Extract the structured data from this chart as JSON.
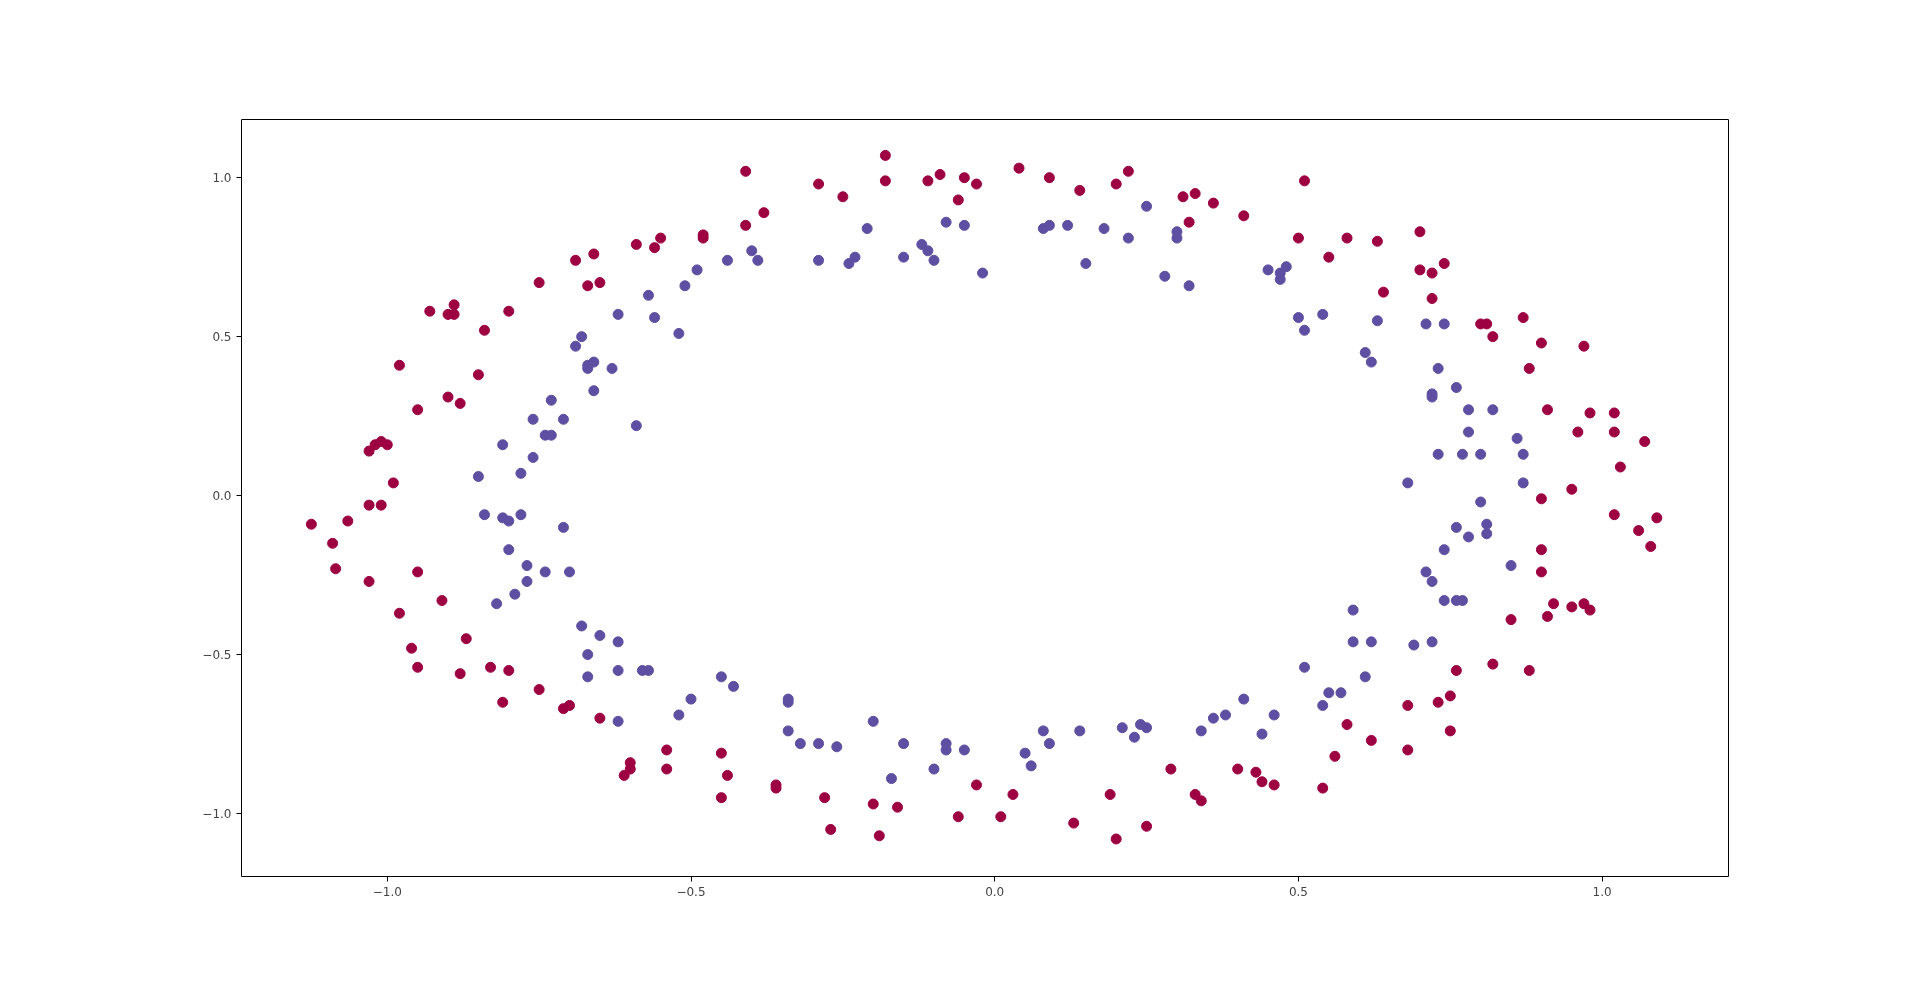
{
  "chart_data": {
    "type": "scatter",
    "marker": "circle",
    "grid": false,
    "xlim": [
      -1.24,
      1.208
    ],
    "ylim": [
      -1.198,
      1.183
    ],
    "xticks": [
      {
        "value": -1.0,
        "label": "−1.0"
      },
      {
        "value": -0.5,
        "label": "−0.5"
      },
      {
        "value": 0.0,
        "label": "0.0"
      },
      {
        "value": 0.5,
        "label": "0.5"
      },
      {
        "value": 1.0,
        "label": "1.0"
      }
    ],
    "yticks": [
      {
        "value": -1.0,
        "label": "−1.0"
      },
      {
        "value": -0.5,
        "label": "−0.5"
      },
      {
        "value": 0.0,
        "label": "0.0"
      },
      {
        "value": 0.5,
        "label": "0.5"
      },
      {
        "value": 1.0,
        "label": "1.0"
      }
    ],
    "series": [
      {
        "color": "#9e0142",
        "x": [
          -1.125,
          -1.09,
          -1.085,
          -1.065,
          -1.03,
          -1.03,
          -1.01,
          -1.03,
          -1.02,
          -1.01,
          -1.0,
          -0.99,
          -0.98,
          -0.98,
          -0.95,
          -0.95,
          -0.96,
          -0.95,
          -0.93,
          -0.91,
          -0.9,
          -0.9,
          -0.89,
          -0.89,
          -0.88,
          -0.88,
          -0.87,
          -0.85,
          -0.84,
          -0.83,
          -0.81,
          -0.8,
          -0.8,
          -0.75,
          -0.75,
          -0.71,
          -0.7,
          -0.69,
          -0.67,
          -0.66,
          -0.65,
          -0.65,
          -0.61,
          -0.6,
          -0.6,
          -0.59,
          -0.56,
          -0.55,
          -0.54,
          -0.54,
          -0.48,
          -0.48,
          -0.45,
          -0.44,
          -0.45,
          -0.41,
          -0.41,
          -0.38,
          -0.36,
          -0.36,
          -0.29,
          -0.28,
          -0.27,
          -0.25,
          -0.2,
          -0.19,
          -0.18,
          -0.18,
          -0.16,
          -0.11,
          -0.09,
          -0.06,
          -0.06,
          -0.05,
          -0.03,
          -0.03,
          0.01,
          0.03,
          0.04,
          0.09,
          0.13,
          0.14,
          0.19,
          0.2,
          0.2,
          0.22,
          0.25,
          0.29,
          0.31,
          0.33,
          0.32,
          0.33,
          0.34,
          0.36,
          0.4,
          0.41,
          0.43,
          0.44,
          0.46,
          0.5,
          0.51,
          0.54,
          0.55,
          0.56,
          0.58,
          0.58,
          0.62,
          0.63,
          0.64,
          0.68,
          0.68,
          0.7,
          0.7,
          0.72,
          0.72,
          0.73,
          0.74,
          0.75,
          0.75,
          0.76,
          0.8,
          0.81,
          0.82,
          0.82,
          0.85,
          0.87,
          0.88,
          0.88,
          0.9,
          0.9,
          0.9,
          0.9,
          0.91,
          0.91,
          0.92,
          0.95,
          0.95,
          0.96,
          0.97,
          0.97,
          0.98,
          0.98,
          1.02,
          1.02,
          1.02,
          1.03,
          1.06,
          1.07,
          1.08,
          1.09
        ],
        "values": [
          -0.09,
          -0.15,
          -0.23,
          -0.08,
          -0.27,
          -0.03,
          -0.03,
          0.14,
          0.16,
          0.17,
          0.16,
          0.04,
          0.41,
          -0.37,
          0.27,
          -0.24,
          -0.48,
          -0.54,
          0.58,
          -0.33,
          0.57,
          0.31,
          0.6,
          0.57,
          0.29,
          -0.56,
          -0.45,
          0.38,
          0.52,
          -0.54,
          -0.65,
          0.58,
          -0.55,
          0.67,
          -0.61,
          -0.67,
          -0.66,
          0.74,
          0.66,
          0.76,
          0.67,
          -0.7,
          -0.88,
          -0.86,
          -0.84,
          0.79,
          0.78,
          0.81,
          -0.8,
          -0.86,
          0.82,
          0.81,
          -0.81,
          -0.88,
          -0.95,
          1.02,
          0.85,
          0.89,
          -0.91,
          -0.92,
          0.98,
          -0.95,
          -1.05,
          0.94,
          -0.97,
          -1.07,
          1.07,
          0.99,
          -0.98,
          0.99,
          1.01,
          0.93,
          -1.01,
          1.0,
          0.98,
          -0.91,
          -1.01,
          -0.94,
          1.03,
          1.0,
          -1.03,
          0.96,
          -0.94,
          -1.08,
          0.98,
          1.02,
          -1.04,
          -0.86,
          0.94,
          0.95,
          0.86,
          -0.94,
          -0.96,
          0.92,
          -0.86,
          0.88,
          -0.87,
          -0.9,
          -0.91,
          0.81,
          0.99,
          -0.92,
          0.75,
          -0.82,
          0.81,
          -0.72,
          -0.77,
          0.8,
          0.64,
          -0.66,
          -0.8,
          0.83,
          0.71,
          0.62,
          0.7,
          -0.65,
          0.73,
          -0.63,
          -0.74,
          -0.55,
          0.54,
          0.54,
          0.5,
          -0.53,
          -0.39,
          0.56,
          0.4,
          -0.55,
          0.48,
          -0.01,
          -0.17,
          -0.24,
          -0.38,
          0.27,
          -0.34,
          0.02,
          -0.35,
          0.2,
          -0.34,
          0.47,
          -0.36,
          0.26,
          0.2,
          0.26,
          -0.06,
          0.09,
          -0.11,
          0.17,
          -0.16,
          -0.07
        ]
      },
      {
        "color": "#5e4fa2",
        "x": [
          -0.85,
          -0.84,
          -0.82,
          -0.81,
          -0.81,
          -0.8,
          -0.8,
          -0.79,
          -0.78,
          -0.78,
          -0.77,
          -0.77,
          -0.76,
          -0.76,
          -0.74,
          -0.73,
          -0.74,
          -0.73,
          -0.71,
          -0.71,
          -0.7,
          -0.69,
          -0.68,
          -0.68,
          -0.67,
          -0.67,
          -0.67,
          -0.67,
          -0.66,
          -0.66,
          -0.65,
          -0.63,
          -0.62,
          -0.62,
          -0.62,
          -0.62,
          -0.59,
          -0.58,
          -0.57,
          -0.57,
          -0.56,
          -0.52,
          -0.52,
          -0.51,
          -0.49,
          -0.5,
          -0.45,
          -0.44,
          -0.43,
          -0.4,
          -0.39,
          -0.34,
          -0.34,
          -0.34,
          -0.32,
          -0.29,
          -0.29,
          -0.26,
          -0.24,
          -0.23,
          -0.21,
          -0.2,
          -0.17,
          -0.15,
          -0.15,
          -0.12,
          -0.11,
          -0.1,
          -0.1,
          -0.08,
          -0.08,
          -0.08,
          -0.05,
          -0.05,
          -0.02,
          0.05,
          0.06,
          0.08,
          0.08,
          0.09,
          0.09,
          0.12,
          0.14,
          0.15,
          0.18,
          0.21,
          0.22,
          0.23,
          0.24,
          0.25,
          0.25,
          0.28,
          0.3,
          0.3,
          0.32,
          0.34,
          0.36,
          0.38,
          0.41,
          0.44,
          0.45,
          0.46,
          0.47,
          0.47,
          0.48,
          0.5,
          0.51,
          0.51,
          0.54,
          0.54,
          0.55,
          0.57,
          0.59,
          0.59,
          0.61,
          0.61,
          0.62,
          0.62,
          0.63,
          0.68,
          0.69,
          0.71,
          0.71,
          0.72,
          0.72,
          0.72,
          0.72,
          0.73,
          0.73,
          0.74,
          0.74,
          0.74,
          0.76,
          0.76,
          0.76,
          0.77,
          0.77,
          0.78,
          0.78,
          0.78,
          0.8,
          0.8,
          0.81,
          0.81,
          0.82,
          0.85,
          0.86,
          0.87,
          0.87
        ],
        "values": [
          0.06,
          -0.06,
          -0.34,
          0.16,
          -0.07,
          -0.08,
          -0.17,
          -0.31,
          0.07,
          -0.06,
          -0.22,
          -0.27,
          0.12,
          0.24,
          0.19,
          0.19,
          -0.24,
          0.3,
          0.24,
          -0.1,
          -0.24,
          0.47,
          -0.41,
          0.5,
          0.4,
          0.41,
          -0.5,
          -0.57,
          0.42,
          0.33,
          -0.44,
          0.4,
          -0.46,
          -0.55,
          -0.71,
          0.57,
          0.22,
          -0.55,
          -0.55,
          0.63,
          0.56,
          -0.69,
          0.51,
          0.66,
          0.71,
          -0.64,
          -0.57,
          0.74,
          -0.6,
          0.77,
          0.74,
          -0.64,
          -0.65,
          -0.74,
          -0.78,
          -0.78,
          0.74,
          -0.79,
          0.73,
          0.75,
          0.84,
          -0.71,
          -0.89,
          -0.78,
          0.75,
          0.79,
          0.77,
          0.74,
          -0.86,
          -0.78,
          -0.8,
          0.86,
          0.85,
          -0.8,
          0.7,
          -0.81,
          -0.85,
          0.84,
          -0.74,
          0.85,
          -0.78,
          0.85,
          -0.74,
          0.73,
          0.84,
          -0.73,
          0.81,
          -0.76,
          -0.72,
          0.91,
          -0.73,
          0.69,
          0.83,
          0.81,
          0.66,
          -0.74,
          -0.7,
          -0.69,
          -0.64,
          -0.75,
          0.71,
          -0.69,
          0.68,
          0.7,
          0.72,
          0.56,
          0.52,
          -0.54,
          0.57,
          -0.66,
          -0.62,
          -0.62,
          -0.46,
          -0.36,
          0.45,
          -0.57,
          -0.46,
          0.42,
          0.55,
          0.04,
          -0.47,
          0.54,
          -0.24,
          0.32,
          0.31,
          -0.27,
          -0.46,
          0.4,
          0.13,
          0.54,
          -0.17,
          -0.33,
          0.34,
          -0.1,
          -0.33,
          -0.33,
          0.13,
          0.27,
          0.2,
          -0.13,
          -0.02,
          0.13,
          -0.09,
          -0.12,
          0.27,
          -0.22,
          0.18,
          0.13,
          0.04
        ]
      }
    ]
  }
}
